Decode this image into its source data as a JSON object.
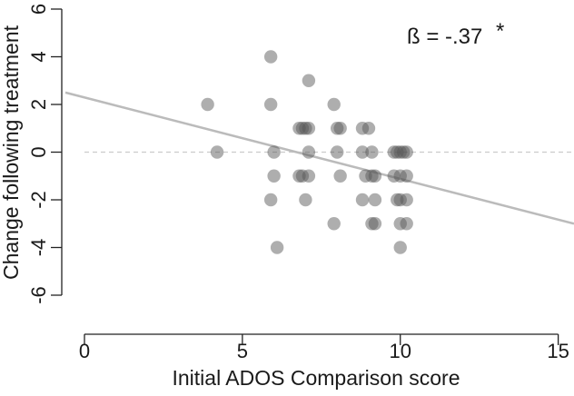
{
  "chart_data": {
    "type": "scatter",
    "title": "",
    "xlabel": "Initial ADOS Comparison score",
    "ylabel": "Change following treatment",
    "annotation": {
      "text": "ß = -.37",
      "mark": "*"
    },
    "xlim": [
      0,
      15.5
    ],
    "ylim": [
      -6,
      6
    ],
    "xticks": [
      0,
      5,
      10,
      15
    ],
    "yticks": [
      -6,
      -4,
      -2,
      0,
      2,
      4,
      6
    ],
    "xtick_labels": [
      "0",
      "5",
      "10",
      "15"
    ],
    "ytick_labels": [
      "-6",
      "-4",
      "-2",
      "0",
      "2",
      "4",
      "6"
    ],
    "reference_line": {
      "y": 0,
      "style": "dashed"
    },
    "regression_line": {
      "x": [
        0,
        15.5
      ],
      "y": [
        2.5,
        -3.0
      ]
    },
    "colors": {
      "point": "#555555",
      "regression": "#bbbbbb",
      "reference": "#cccccc"
    },
    "points": [
      {
        "x": 3.9,
        "y": 2
      },
      {
        "x": 4.2,
        "y": 0
      },
      {
        "x": 5.9,
        "y": 4
      },
      {
        "x": 5.9,
        "y": 2
      },
      {
        "x": 5.9,
        "y": -2
      },
      {
        "x": 6.0,
        "y": 0
      },
      {
        "x": 6.0,
        "y": -1
      },
      {
        "x": 6.1,
        "y": -4
      },
      {
        "x": 6.8,
        "y": 1
      },
      {
        "x": 6.9,
        "y": 1
      },
      {
        "x": 7.0,
        "y": 1
      },
      {
        "x": 7.1,
        "y": 1
      },
      {
        "x": 6.8,
        "y": -1
      },
      {
        "x": 6.9,
        "y": -1
      },
      {
        "x": 7.1,
        "y": -1
      },
      {
        "x": 7.1,
        "y": 3
      },
      {
        "x": 7.1,
        "y": 0
      },
      {
        "x": 7.0,
        "y": -2
      },
      {
        "x": 7.9,
        "y": 2
      },
      {
        "x": 8.0,
        "y": 1
      },
      {
        "x": 8.1,
        "y": 1
      },
      {
        "x": 8.0,
        "y": 0
      },
      {
        "x": 8.1,
        "y": -1
      },
      {
        "x": 7.9,
        "y": -3
      },
      {
        "x": 8.8,
        "y": 1
      },
      {
        "x": 9.0,
        "y": 1
      },
      {
        "x": 8.8,
        "y": 0
      },
      {
        "x": 9.1,
        "y": 0
      },
      {
        "x": 8.9,
        "y": -1
      },
      {
        "x": 9.1,
        "y": -1
      },
      {
        "x": 9.2,
        "y": -1
      },
      {
        "x": 8.8,
        "y": -2
      },
      {
        "x": 9.2,
        "y": -2
      },
      {
        "x": 9.1,
        "y": -3
      },
      {
        "x": 9.2,
        "y": -3
      },
      {
        "x": 9.8,
        "y": 0
      },
      {
        "x": 9.9,
        "y": 0
      },
      {
        "x": 10.0,
        "y": 0
      },
      {
        "x": 10.1,
        "y": 0
      },
      {
        "x": 10.2,
        "y": 0
      },
      {
        "x": 9.8,
        "y": -1
      },
      {
        "x": 10.0,
        "y": -1
      },
      {
        "x": 10.2,
        "y": -1
      },
      {
        "x": 9.9,
        "y": -2
      },
      {
        "x": 10.0,
        "y": -2
      },
      {
        "x": 10.2,
        "y": -2
      },
      {
        "x": 10.0,
        "y": -3
      },
      {
        "x": 10.2,
        "y": -3
      },
      {
        "x": 10.0,
        "y": -4
      }
    ]
  }
}
